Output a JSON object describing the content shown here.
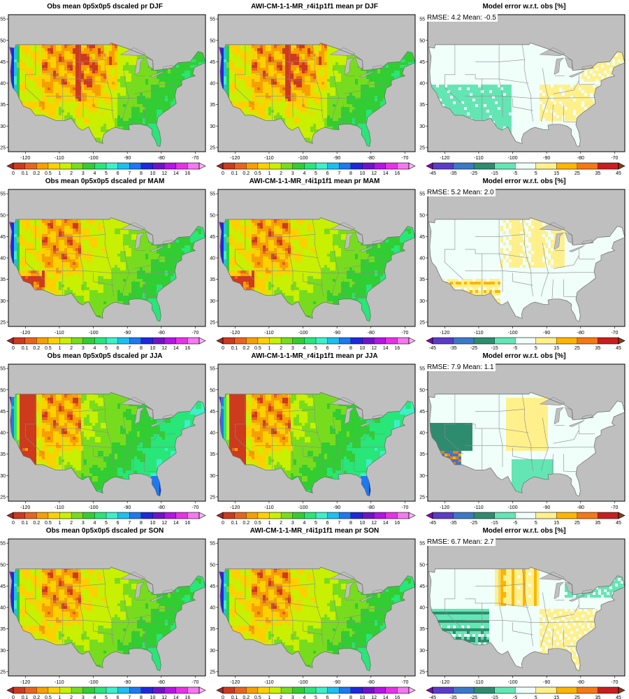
{
  "panels": [
    {
      "title": "Obs mean 0p5x0p5 dscaled pr DJF",
      "kind": "abs",
      "season": "DJF",
      "stats": ""
    },
    {
      "title": "AWI-CM-1-1-MR_r4i1p1f1 mean pr DJF",
      "kind": "abs",
      "season": "DJF",
      "stats": ""
    },
    {
      "title": "Model error w.r.t. obs [%]",
      "kind": "err",
      "season": "DJF",
      "stats": "RMSE: 4.2  Mean: -0.5"
    },
    {
      "title": "Obs mean 0p5x0p5 dscaled pr MAM",
      "kind": "abs",
      "season": "MAM",
      "stats": ""
    },
    {
      "title": "AWI-CM-1-1-MR_r4i1p1f1 mean pr MAM",
      "kind": "abs",
      "season": "MAM",
      "stats": ""
    },
    {
      "title": "Model error w.r.t. obs [%]",
      "kind": "err",
      "season": "MAM",
      "stats": "RMSE: 5.2  Mean: 2.0"
    },
    {
      "title": "Obs mean 0p5x0p5 dscaled pr JJA",
      "kind": "abs",
      "season": "JJA",
      "stats": ""
    },
    {
      "title": "AWI-CM-1-1-MR_r4i1p1f1 mean pr JJA",
      "kind": "abs",
      "season": "JJA",
      "stats": ""
    },
    {
      "title": "Model error w.r.t. obs [%]",
      "kind": "err",
      "season": "JJA",
      "stats": "RMSE: 7.9  Mean: 1.1"
    },
    {
      "title": "Obs mean 0p5x0p5 dscaled pr SON",
      "kind": "abs",
      "season": "SON",
      "stats": ""
    },
    {
      "title": "AWI-CM-1-1-MR_r4i1p1f1 mean pr SON",
      "kind": "abs",
      "season": "SON",
      "stats": ""
    },
    {
      "title": "Model error w.r.t. obs [%]",
      "kind": "err",
      "season": "SON",
      "stats": "RMSE: 6.7  Mean: 2.7"
    }
  ],
  "axes": {
    "lon_ticks": [
      "-120",
      "-110",
      "-100",
      "-90",
      "-80",
      "-70"
    ],
    "lat_ticks": [
      "25",
      "30",
      "35",
      "40",
      "45",
      "50",
      "55"
    ]
  },
  "colorbars": {
    "abs": {
      "labels": [
        "0",
        "0.1",
        "0.2",
        "0.5",
        "1",
        "2",
        "3",
        "4",
        "5",
        "6",
        "7",
        "8",
        "10",
        "12",
        "14",
        "16"
      ],
      "colors": [
        "#a52a2a",
        "#cd3a1e",
        "#e8641e",
        "#f5a000",
        "#ffd000",
        "#c8f000",
        "#78dc1e",
        "#32cd32",
        "#28e678",
        "#3cf0c8",
        "#1ebef0",
        "#1e78f0",
        "#1e28dc",
        "#6e14c8",
        "#b414e6",
        "#e632e6",
        "#f578f0",
        "#ffb4f5"
      ]
    },
    "err": {
      "labels": [
        "-45",
        "-35",
        "-25",
        "-15",
        "-5",
        "5",
        "15",
        "25",
        "35",
        "45"
      ],
      "colors": [
        "#8c00b4",
        "#5a3cc8",
        "#3c78c8",
        "#2e8c6e",
        "#64e6b4",
        "#f0fffa",
        "#fff08c",
        "#ffb400",
        "#f57814",
        "#c81e1e",
        "#8c3c14"
      ]
    }
  }
}
